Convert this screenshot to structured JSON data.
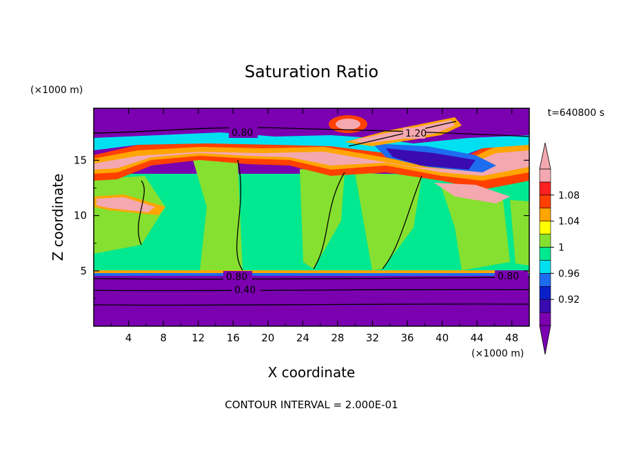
{
  "chart_data": {
    "type": "heatmap",
    "title": "Saturation Ratio",
    "time_label": "t=640800 s",
    "xlabel": "X coordinate",
    "ylabel": "Z coordinate",
    "x_unit": "(×1000 m)",
    "y_unit": "(×1000 m)",
    "xlim": [
      0,
      50
    ],
    "ylim": [
      0,
      19.7
    ],
    "x_ticks": [
      "4",
      "8",
      "12",
      "16",
      "20",
      "24",
      "28",
      "32",
      "36",
      "40",
      "44",
      "48"
    ],
    "y_ticks": [
      "5",
      "10",
      "15"
    ],
    "colorbar": {
      "levels": [
        0.9,
        0.92,
        0.94,
        0.96,
        0.98,
        1.0,
        1.02,
        1.04,
        1.06,
        1.08,
        1.1
      ],
      "labels": [
        "1.08",
        "1.04",
        "1",
        "0.96",
        "0.92"
      ],
      "colors": [
        "#7a00b0",
        "#3a0bb0",
        "#0a20c8",
        "#1e6cf0",
        "#00e0f0",
        "#00e890",
        "#86e030",
        "#ffff00",
        "#ffa500",
        "#ff4000",
        "#ff2020",
        "#f4a8b0"
      ],
      "under_color": "#7a00b0",
      "over_color": "#f4a8b0"
    },
    "contour_labels": [
      "0.80",
      "1.20",
      "0.80",
      "0.40",
      "0.80"
    ],
    "contour_interval_text": "CONTOUR INTERVAL = 2.000E-01"
  }
}
